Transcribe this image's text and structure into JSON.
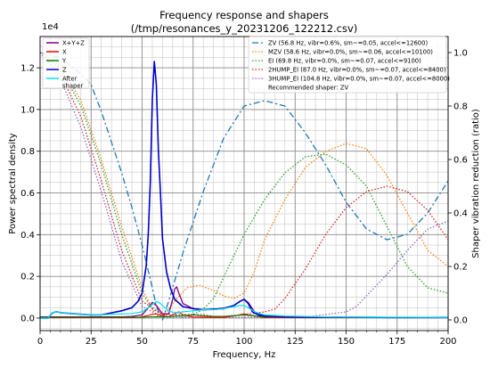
{
  "chart_data": {
    "type": "line",
    "title": "Frequency response and shapers",
    "subtitle": "(/tmp/resonances_y_20231206_122212.csv)",
    "xlabel": "Frequency, Hz",
    "ylabel": "Power spectral density",
    "y2label": "Shaper vibration reduction (ratio)",
    "y_offset_text": "1e4",
    "xlim": [
      0,
      200
    ],
    "ylim": [
      -600,
      13500
    ],
    "y2lim": [
      -0.04,
      1.06
    ],
    "x_ticks": [
      "0",
      "25",
      "50",
      "75",
      "100",
      "125",
      "150",
      "175",
      "200"
    ],
    "y_ticks": [
      "0.0",
      "0.2",
      "0.4",
      "0.6",
      "0.8",
      "1.0",
      "1.2"
    ],
    "y2_ticks": [
      "0.0",
      "0.2",
      "0.4",
      "0.6",
      "0.8",
      "1.0"
    ],
    "grid": true,
    "psd_legend": {
      "placement": "top-left",
      "entries": [
        {
          "label": "X+Y+Z",
          "color": "#800080"
        },
        {
          "label": "X",
          "color": "#ff0000"
        },
        {
          "label": "Y",
          "color": "#008000"
        },
        {
          "label": "Z",
          "color": "#0000cc"
        },
        {
          "label": "After\nshaper",
          "color": "#00e5ee"
        }
      ]
    },
    "shaper_legend": {
      "placement": "top-right",
      "entries": [
        {
          "label": "ZV (56.8 Hz, vibr=0.6%, sm~=0.05, accel<=12600)",
          "color": "#1f77b4",
          "dash": "7,3,2,3"
        },
        {
          "label": "MZV (58.6 Hz, vibr=0.0%, sm~=0.06, accel<=10100)",
          "color": "#ff7f0e",
          "dash": "1.5,2"
        },
        {
          "label": "EI (69.8 Hz, vibr=0.0%, sm~=0.07, accel<=9100)",
          "color": "#2ca02c",
          "dash": "1.5,2"
        },
        {
          "label": "2HUMP_EI (87.0 Hz, vibr=0.0%, sm~=0.07, accel<=8400)",
          "color": "#d62728",
          "dash": "1.5,2"
        },
        {
          "label": "3HUMP_EI (104.8 Hz, vibr=0.0%, sm~=0.07, accel<=8000)",
          "color": "#9467bd",
          "dash": "1.5,2"
        }
      ],
      "footer": "Recommended shaper: ZV"
    },
    "psd_series": [
      {
        "name": "X+Y+Z",
        "axis": "left",
        "color": "#800080",
        "width": 1.3,
        "points": [
          [
            0,
            60
          ],
          [
            5,
            60
          ],
          [
            10,
            60
          ],
          [
            20,
            60
          ],
          [
            30,
            60
          ],
          [
            40,
            60
          ],
          [
            45,
            80
          ],
          [
            50,
            150
          ],
          [
            53,
            500
          ],
          [
            55,
            750
          ],
          [
            57,
            600
          ],
          [
            60,
            200
          ],
          [
            63,
            200
          ],
          [
            65,
            900
          ],
          [
            66,
            1400
          ],
          [
            67,
            1500
          ],
          [
            68,
            1200
          ],
          [
            70,
            700
          ],
          [
            75,
            450
          ],
          [
            80,
            400
          ],
          [
            85,
            420
          ],
          [
            90,
            480
          ],
          [
            95,
            600
          ],
          [
            98,
            800
          ],
          [
            100,
            900
          ],
          [
            102,
            750
          ],
          [
            105,
            300
          ],
          [
            110,
            100
          ],
          [
            120,
            40
          ],
          [
            140,
            40
          ],
          [
            160,
            40
          ],
          [
            180,
            30
          ],
          [
            200,
            30
          ]
        ]
      },
      {
        "name": "X",
        "axis": "left",
        "color": "#ff0000",
        "width": 1.1,
        "points": [
          [
            0,
            20
          ],
          [
            20,
            20
          ],
          [
            40,
            20
          ],
          [
            48,
            30
          ],
          [
            52,
            100
          ],
          [
            55,
            180
          ],
          [
            57,
            200
          ],
          [
            60,
            120
          ],
          [
            63,
            60
          ],
          [
            66,
            200
          ],
          [
            68,
            300
          ],
          [
            70,
            150
          ],
          [
            75,
            50
          ],
          [
            90,
            30
          ],
          [
            95,
            100
          ],
          [
            100,
            200
          ],
          [
            105,
            100
          ],
          [
            110,
            30
          ],
          [
            150,
            20
          ],
          [
            200,
            20
          ]
        ]
      },
      {
        "name": "Y",
        "axis": "left",
        "color": "#008000",
        "width": 1.1,
        "points": [
          [
            0,
            40
          ],
          [
            20,
            40
          ],
          [
            40,
            40
          ],
          [
            50,
            40
          ],
          [
            55,
            60
          ],
          [
            60,
            60
          ],
          [
            65,
            80
          ],
          [
            70,
            120
          ],
          [
            75,
            150
          ],
          [
            80,
            100
          ],
          [
            85,
            80
          ],
          [
            90,
            80
          ],
          [
            100,
            150
          ],
          [
            105,
            100
          ],
          [
            110,
            60
          ],
          [
            120,
            60
          ],
          [
            140,
            50
          ],
          [
            160,
            40
          ],
          [
            200,
            40
          ]
        ]
      },
      {
        "name": "Z",
        "axis": "left",
        "color": "#0000cc",
        "width": 1.6,
        "points": [
          [
            0,
            0
          ],
          [
            4,
            0
          ],
          [
            6,
            250
          ],
          [
            8,
            300
          ],
          [
            10,
            260
          ],
          [
            15,
            220
          ],
          [
            20,
            180
          ],
          [
            25,
            150
          ],
          [
            30,
            150
          ],
          [
            35,
            250
          ],
          [
            40,
            350
          ],
          [
            45,
            500
          ],
          [
            48,
            800
          ],
          [
            50,
            1200
          ],
          [
            52,
            2500
          ],
          [
            53,
            4000
          ],
          [
            54,
            6500
          ],
          [
            55,
            10500
          ],
          [
            56,
            12300
          ],
          [
            57,
            11200
          ],
          [
            58,
            8000
          ],
          [
            59,
            6000
          ],
          [
            60,
            3800
          ],
          [
            62,
            2200
          ],
          [
            64,
            1400
          ],
          [
            66,
            900
          ],
          [
            70,
            550
          ],
          [
            75,
            450
          ],
          [
            80,
            400
          ],
          [
            90,
            450
          ],
          [
            95,
            600
          ],
          [
            98,
            800
          ],
          [
            100,
            900
          ],
          [
            102,
            700
          ],
          [
            104,
            300
          ],
          [
            107,
            150
          ],
          [
            110,
            100
          ],
          [
            120,
            60
          ],
          [
            130,
            50
          ],
          [
            150,
            40
          ],
          [
            170,
            30
          ],
          [
            200,
            30
          ]
        ]
      },
      {
        "name": "After shaper",
        "axis": "left",
        "color": "#00e5ee",
        "width": 1.2,
        "points": [
          [
            0,
            0
          ],
          [
            4,
            0
          ],
          [
            6,
            250
          ],
          [
            8,
            300
          ],
          [
            10,
            260
          ],
          [
            15,
            220
          ],
          [
            20,
            180
          ],
          [
            25,
            150
          ],
          [
            30,
            150
          ],
          [
            35,
            180
          ],
          [
            40,
            200
          ],
          [
            45,
            220
          ],
          [
            50,
            300
          ],
          [
            53,
            500
          ],
          [
            55,
            650
          ],
          [
            57,
            800
          ],
          [
            59,
            700
          ],
          [
            61,
            500
          ],
          [
            64,
            300
          ],
          [
            67,
            250
          ],
          [
            70,
            300
          ],
          [
            75,
            350
          ],
          [
            80,
            400
          ],
          [
            85,
            400
          ],
          [
            90,
            450
          ],
          [
            95,
            550
          ],
          [
            98,
            600
          ],
          [
            100,
            600
          ],
          [
            102,
            500
          ],
          [
            105,
            300
          ],
          [
            110,
            150
          ],
          [
            120,
            100
          ],
          [
            140,
            60
          ],
          [
            160,
            40
          ],
          [
            180,
            40
          ],
          [
            200,
            30
          ]
        ]
      }
    ],
    "shaper_series": [
      {
        "name": "ZV",
        "axis": "right",
        "color": "#1f77b4",
        "width": 1.3,
        "dash": "7,3,2,3",
        "points": [
          [
            0,
            1.0
          ],
          [
            10,
            0.98
          ],
          [
            20,
            0.92
          ],
          [
            25,
            0.88
          ],
          [
            30,
            0.78
          ],
          [
            40,
            0.55
          ],
          [
            45,
            0.42
          ],
          [
            50,
            0.28
          ],
          [
            55,
            0.12
          ],
          [
            57,
            0.05
          ],
          [
            60,
            0.0
          ],
          [
            63,
            0.07
          ],
          [
            70,
            0.25
          ],
          [
            80,
            0.48
          ],
          [
            90,
            0.68
          ],
          [
            100,
            0.8
          ],
          [
            110,
            0.82
          ],
          [
            120,
            0.8
          ],
          [
            130,
            0.7
          ],
          [
            140,
            0.58
          ],
          [
            150,
            0.44
          ],
          [
            160,
            0.34
          ],
          [
            170,
            0.3
          ],
          [
            180,
            0.32
          ],
          [
            190,
            0.4
          ],
          [
            200,
            0.52
          ]
        ]
      },
      {
        "name": "MZV",
        "axis": "right",
        "color": "#ff7f0e",
        "width": 1.3,
        "dash": "1.5,2",
        "points": [
          [
            0,
            1.0
          ],
          [
            10,
            0.95
          ],
          [
            20,
            0.82
          ],
          [
            30,
            0.6
          ],
          [
            40,
            0.35
          ],
          [
            50,
            0.12
          ],
          [
            55,
            0.04
          ],
          [
            58,
            0.01
          ],
          [
            62,
            0.03
          ],
          [
            67,
            0.08
          ],
          [
            72,
            0.12
          ],
          [
            78,
            0.13
          ],
          [
            85,
            0.11
          ],
          [
            90,
            0.09
          ],
          [
            95,
            0.08
          ],
          [
            100,
            0.1
          ],
          [
            105,
            0.18
          ],
          [
            110,
            0.3
          ],
          [
            120,
            0.45
          ],
          [
            130,
            0.57
          ],
          [
            140,
            0.63
          ],
          [
            150,
            0.66
          ],
          [
            160,
            0.64
          ],
          [
            170,
            0.54
          ],
          [
            180,
            0.4
          ],
          [
            190,
            0.26
          ],
          [
            200,
            0.2
          ]
        ]
      },
      {
        "name": "EI",
        "axis": "right",
        "color": "#2ca02c",
        "width": 1.3,
        "dash": "1.5,2",
        "points": [
          [
            0,
            1.0
          ],
          [
            10,
            0.94
          ],
          [
            20,
            0.8
          ],
          [
            30,
            0.58
          ],
          [
            40,
            0.32
          ],
          [
            50,
            0.1
          ],
          [
            55,
            0.04
          ],
          [
            60,
            0.02
          ],
          [
            65,
            0.02
          ],
          [
            70,
            0.01
          ],
          [
            75,
            0.02
          ],
          [
            80,
            0.04
          ],
          [
            85,
            0.08
          ],
          [
            90,
            0.16
          ],
          [
            100,
            0.32
          ],
          [
            110,
            0.45
          ],
          [
            120,
            0.55
          ],
          [
            130,
            0.61
          ],
          [
            140,
            0.62
          ],
          [
            150,
            0.58
          ],
          [
            160,
            0.5
          ],
          [
            170,
            0.35
          ],
          [
            180,
            0.2
          ],
          [
            190,
            0.12
          ],
          [
            200,
            0.1
          ]
        ]
      },
      {
        "name": "2HUMP_EI",
        "axis": "right",
        "color": "#d62728",
        "width": 1.3,
        "dash": "1.5,2",
        "points": [
          [
            0,
            1.0
          ],
          [
            10,
            0.92
          ],
          [
            20,
            0.76
          ],
          [
            30,
            0.52
          ],
          [
            40,
            0.26
          ],
          [
            50,
            0.07
          ],
          [
            60,
            0.02
          ],
          [
            70,
            0.02
          ],
          [
            80,
            0.02
          ],
          [
            87,
            0.01
          ],
          [
            100,
            0.02
          ],
          [
            110,
            0.03
          ],
          [
            115,
            0.04
          ],
          [
            120,
            0.08
          ],
          [
            130,
            0.19
          ],
          [
            140,
            0.32
          ],
          [
            150,
            0.42
          ],
          [
            160,
            0.48
          ],
          [
            170,
            0.5
          ],
          [
            180,
            0.48
          ],
          [
            190,
            0.41
          ],
          [
            200,
            0.3
          ]
        ]
      },
      {
        "name": "3HUMP_EI",
        "axis": "right",
        "color": "#9467bd",
        "width": 1.3,
        "dash": "1.5,2",
        "points": [
          [
            0,
            1.0
          ],
          [
            10,
            0.9
          ],
          [
            20,
            0.72
          ],
          [
            30,
            0.48
          ],
          [
            40,
            0.22
          ],
          [
            50,
            0.05
          ],
          [
            60,
            0.01
          ],
          [
            80,
            0.01
          ],
          [
            100,
            0.01
          ],
          [
            120,
            0.01
          ],
          [
            130,
            0.01
          ],
          [
            140,
            0.02
          ],
          [
            150,
            0.03
          ],
          [
            155,
            0.05
          ],
          [
            160,
            0.09
          ],
          [
            170,
            0.17
          ],
          [
            180,
            0.26
          ],
          [
            190,
            0.34
          ],
          [
            200,
            0.37
          ]
        ]
      }
    ]
  }
}
